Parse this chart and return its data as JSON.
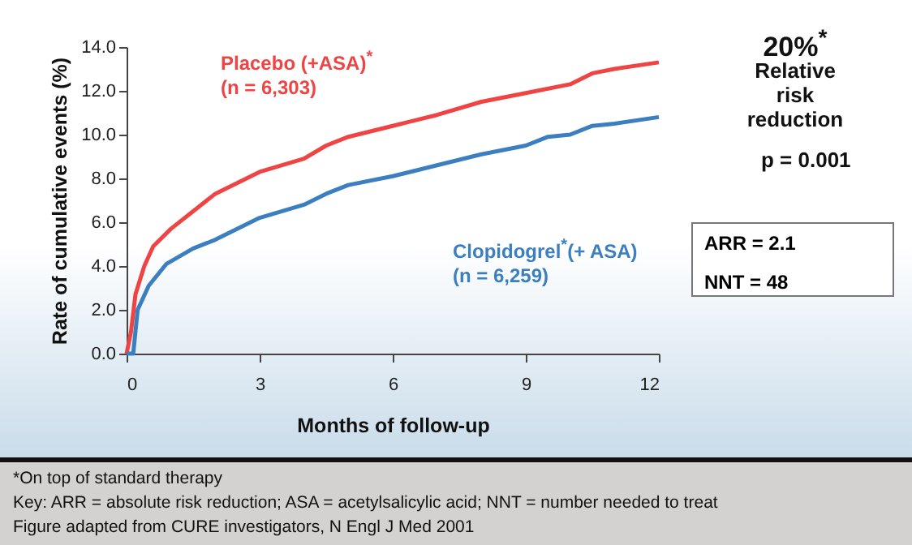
{
  "chart_data": {
    "type": "line",
    "xlabel": "Months of follow-up",
    "ylabel": "Rate of cumulative events (%)",
    "xlim": [
      0,
      12
    ],
    "xticks": [
      0,
      3,
      6,
      9,
      12
    ],
    "ylim": [
      0,
      14
    ],
    "yticks": [
      {
        "value": 0,
        "label": "0.0"
      },
      {
        "value": 2,
        "label": "2.0"
      },
      {
        "value": 4,
        "label": "4.0"
      },
      {
        "value": 6,
        "label": "6.0"
      },
      {
        "value": 8,
        "label": "8.0"
      },
      {
        "value": 10,
        "label": "10.0"
      },
      {
        "value": 12,
        "label": "12.0"
      },
      {
        "value": 14,
        "label": "14.0"
      }
    ],
    "grid": false,
    "legend": false,
    "marker": "none",
    "line_style": "solid",
    "series": [
      {
        "name": "Placebo (+ASA)$^{*}$",
        "color": "#ef4444",
        "x": [
          0,
          0.1,
          0.2,
          0.4,
          0.6,
          1,
          1.5,
          2,
          2.5,
          3,
          4,
          4.5,
          5,
          6,
          7,
          8,
          9,
          10,
          10.5,
          11,
          12
        ],
        "values": [
          0,
          1,
          2.7,
          4,
          4.9,
          5.7,
          6.5,
          7.3,
          7.8,
          8.3,
          8.9,
          9.5,
          9.9,
          10.4,
          10.9,
          11.5,
          11.9,
          12.3,
          12.8,
          13,
          13.3
        ]
      },
      {
        "name": "Clopidogrel$^{*}$(+ ASA)",
        "color": "#3b7fc0",
        "x": [
          0,
          0.15,
          0.25,
          0.5,
          0.9,
          1.5,
          2,
          2.5,
          3,
          4,
          4.5,
          5,
          6,
          7,
          8,
          9,
          9.5,
          10,
          10.5,
          11,
          12
        ],
        "values": [
          0,
          0,
          2,
          3.1,
          4.1,
          4.8,
          5.2,
          5.7,
          6.2,
          6.8,
          7.3,
          7.7,
          8.1,
          8.6,
          9.1,
          9.5,
          9.9,
          10,
          10.4,
          10.5,
          10.8
        ]
      }
    ],
    "annotations": [
      "(n = 6,303)",
      "(n = 6,259)",
      "20%$^{*}$",
      "Relative risk reduction",
      "p = 0.001",
      "ARR = 2.1",
      "NNT = 48",
      "*On top of standard therapy",
      "Key: ARR = absolute risk reduction; ASA = acetylsalicylic acid; NNT = number needed to treat",
      "Figure adapted from CURE investigators, N Engl J Med 2001"
    ]
  }
}
